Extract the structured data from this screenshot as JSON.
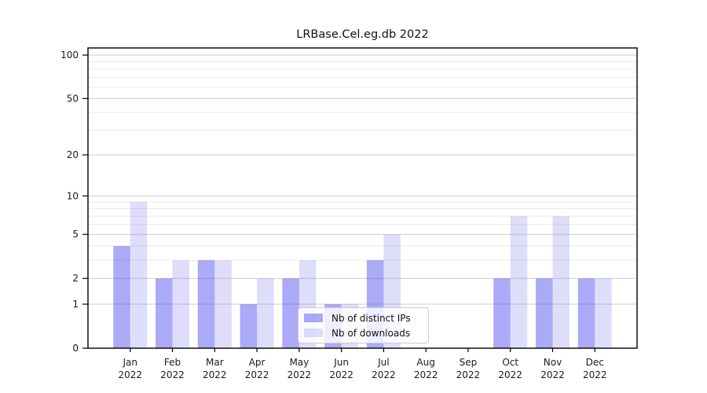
{
  "chart_data": {
    "type": "bar",
    "title": "LRBase.Cel.eg.db 2022",
    "categories": [
      "Jan",
      "Feb",
      "Mar",
      "Apr",
      "May",
      "Jun",
      "Jul",
      "Aug",
      "Sep",
      "Oct",
      "Nov",
      "Dec"
    ],
    "x_year_label": "2022",
    "series": [
      {
        "name": "Nb of distinct IPs",
        "color": "rgba(85,85,240,0.5)",
        "color_hex_on_white": "#aaaaf4",
        "values": [
          4,
          2,
          3,
          1,
          2,
          1,
          3,
          0,
          0,
          2,
          2,
          2
        ]
      },
      {
        "name": "Nb of downloads",
        "color": "rgba(115,115,240,0.24)",
        "color_hex_on_white": "#dedef9",
        "values": [
          9,
          3,
          3,
          2,
          3,
          1,
          5,
          0,
          0,
          7,
          7,
          2
        ]
      }
    ],
    "yscale": "log1p",
    "yticks": [
      0,
      1,
      2,
      5,
      10,
      20,
      50,
      100
    ],
    "yminor_gridlines": [
      3,
      4,
      6,
      7,
      8,
      9,
      30,
      40,
      60,
      70,
      80,
      90
    ],
    "ylim": [
      0,
      110
    ],
    "grid": true,
    "legend_position": "lower center-right inside plot",
    "colors": {
      "axis": "#000000",
      "tick_label": "#1a1a1a",
      "grid_major": "#cccccc",
      "grid_minor": "#eaeaea",
      "background": "#ffffff"
    }
  }
}
